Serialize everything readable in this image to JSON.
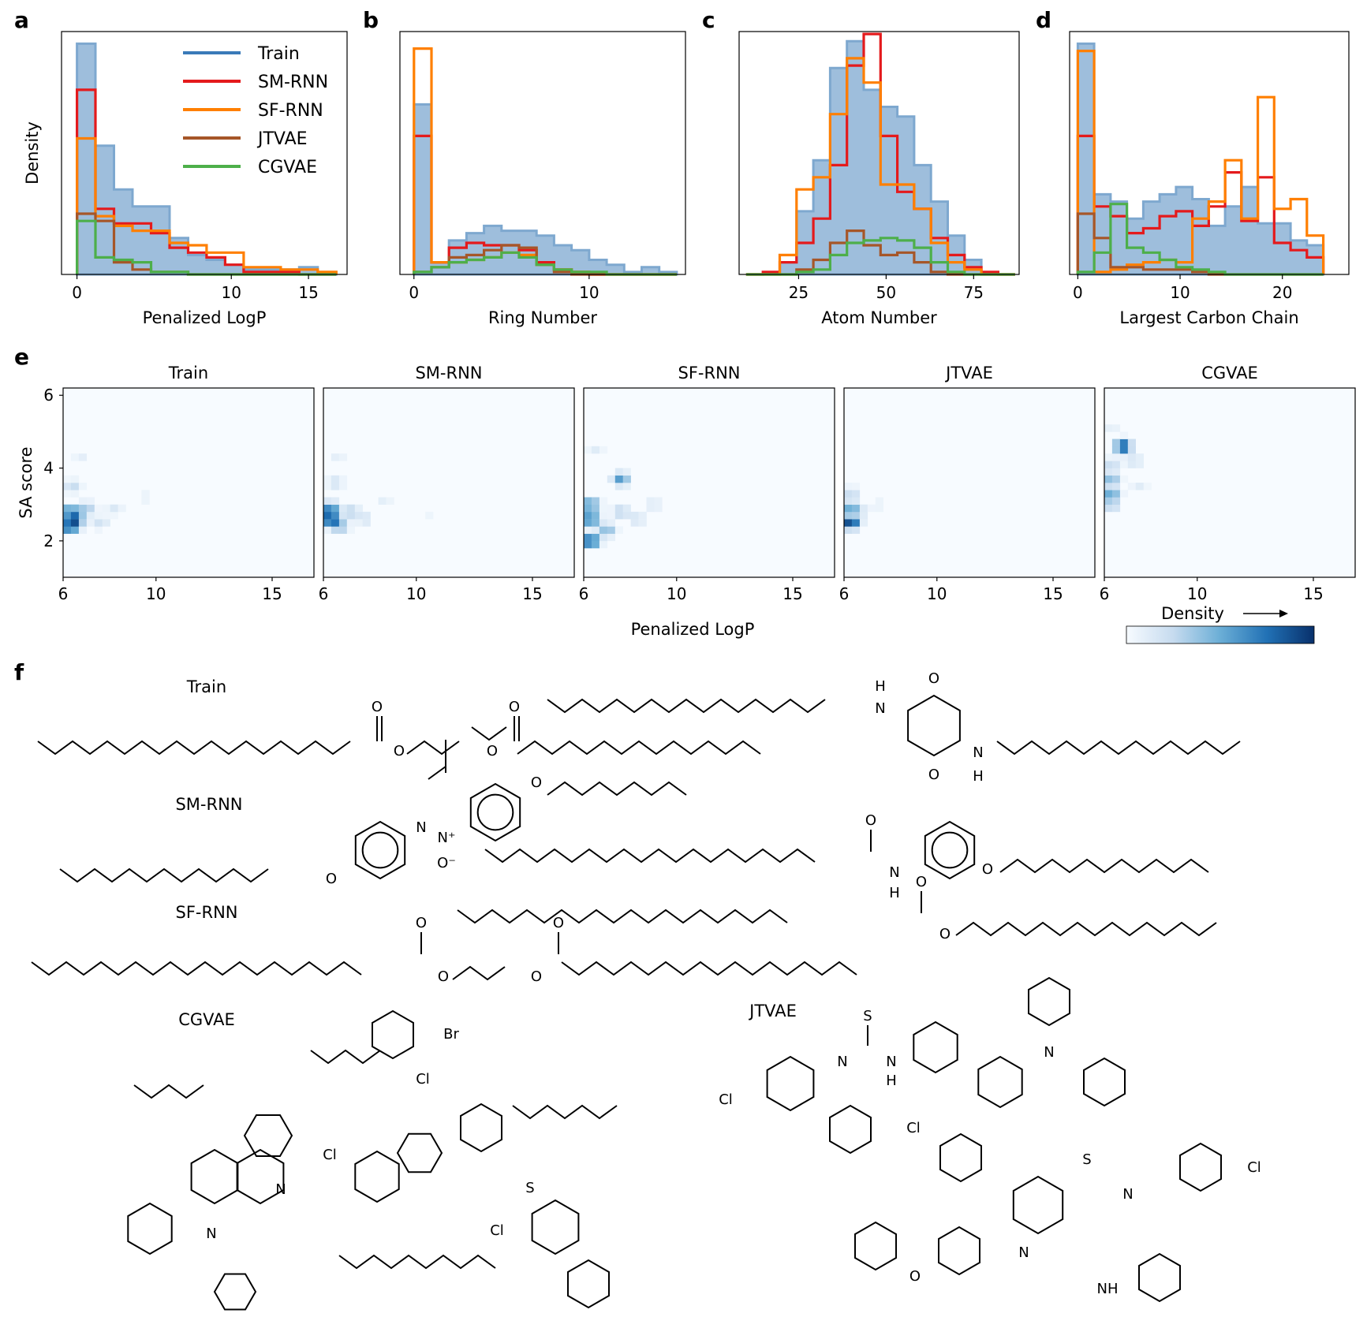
{
  "panel_letters": [
    "a",
    "b",
    "c",
    "d",
    "e",
    "f"
  ],
  "models": [
    {
      "name": "Train",
      "color": "#3a7ab8"
    },
    {
      "name": "SM-RNN",
      "color": "#e41a1c"
    },
    {
      "name": "SF-RNN",
      "color": "#ff7f00"
    },
    {
      "name": "JTVAE",
      "color": "#a65628"
    },
    {
      "name": "CGVAE",
      "color": "#4daf4a"
    }
  ],
  "ylabel_density": "Density",
  "chart_data": [
    {
      "type": "histogram-step",
      "panel": "a",
      "xlabel": "Penalized LogP",
      "ylabel": "Density",
      "xlim": [
        -1,
        17.5
      ],
      "xticks": [
        0,
        10,
        15
      ],
      "legend": "top-right",
      "x_edges": [
        0,
        1.2,
        2.4,
        3.6,
        4.8,
        6,
        7.2,
        8.4,
        9.6,
        10.8,
        12,
        13.2,
        14.4,
        15.6,
        16.8
      ],
      "series": [
        {
          "name": "Train",
          "values": [
            0.95,
            0.53,
            0.35,
            0.28,
            0.28,
            0.15,
            0.08,
            0.06,
            0.04,
            0.02,
            0.02,
            0.02,
            0.03,
            0.01
          ]
        },
        {
          "name": "SM-RNN",
          "values": [
            0.76,
            0.27,
            0.21,
            0.21,
            0.17,
            0.11,
            0.09,
            0.07,
            0.04,
            0.01,
            0.01,
            0.01,
            0.0,
            0.0
          ]
        },
        {
          "name": "SF-RNN",
          "values": [
            0.56,
            0.24,
            0.2,
            0.18,
            0.18,
            0.13,
            0.12,
            0.09,
            0.09,
            0.03,
            0.03,
            0.02,
            0.02,
            0.01
          ]
        },
        {
          "name": "JTVAE",
          "values": [
            0.25,
            0.22,
            0.05,
            0.02,
            0.01,
            0.01,
            0.0,
            0.0,
            0.0,
            0.0,
            0.0,
            0.0,
            0.0,
            0.0
          ]
        },
        {
          "name": "CGVAE",
          "values": [
            0.22,
            0.07,
            0.06,
            0.05,
            0.01,
            0.01,
            0.0,
            0.0,
            0.0,
            0.0,
            0.0,
            0.0,
            0.0,
            0.0
          ]
        }
      ]
    },
    {
      "type": "histogram-step",
      "panel": "b",
      "xlabel": "Ring Number",
      "xlim": [
        -0.8,
        15.5
      ],
      "xticks": [
        0,
        10
      ],
      "x_edges": [
        0,
        1,
        2,
        3,
        4,
        5,
        6,
        7,
        8,
        9,
        10,
        11,
        12,
        13,
        14,
        15
      ],
      "series": [
        {
          "name": "Train",
          "values": [
            0.7,
            0.05,
            0.14,
            0.17,
            0.2,
            0.18,
            0.18,
            0.16,
            0.12,
            0.1,
            0.06,
            0.04,
            0.01,
            0.03,
            0.01
          ]
        },
        {
          "name": "SM-RNN",
          "values": [
            0.57,
            0.05,
            0.11,
            0.13,
            0.12,
            0.12,
            0.1,
            0.05,
            0.02,
            0.01,
            0.0,
            0.0,
            0.0,
            0.0,
            0.0
          ]
        },
        {
          "name": "SF-RNN",
          "values": [
            0.93,
            0.05,
            0.05,
            0.06,
            0.07,
            0.09,
            0.08,
            0.04,
            0.02,
            0.01,
            0.0,
            0.0,
            0.0,
            0.0,
            0.0
          ]
        },
        {
          "name": "JTVAE",
          "values": [
            0.01,
            0.03,
            0.07,
            0.08,
            0.1,
            0.12,
            0.11,
            0.04,
            0.01,
            0.0,
            0.0,
            0.0,
            0.0,
            0.0,
            0.0
          ]
        },
        {
          "name": "CGVAE",
          "values": [
            0.01,
            0.03,
            0.05,
            0.06,
            0.07,
            0.09,
            0.07,
            0.04,
            0.02,
            0.01,
            0.01,
            0.0,
            0.0,
            0.0,
            0.0
          ]
        }
      ]
    },
    {
      "type": "histogram-step",
      "panel": "c",
      "xlabel": "Atom Number",
      "xlim": [
        8,
        88
      ],
      "xticks": [
        25,
        50,
        75
      ],
      "x_edges": [
        10,
        14.8,
        19.6,
        24.4,
        29.2,
        34,
        38.8,
        43.6,
        48.4,
        53.2,
        58,
        62.8,
        67.6,
        72.4,
        77.2,
        82,
        86.8
      ],
      "series": [
        {
          "name": "Train",
          "values": [
            0.0,
            0.0,
            0.05,
            0.26,
            0.47,
            0.85,
            0.96,
            0.76,
            0.69,
            0.65,
            0.45,
            0.3,
            0.16,
            0.06,
            0.0,
            0.0
          ]
        },
        {
          "name": "SM-RNN",
          "values": [
            0.0,
            0.01,
            0.05,
            0.13,
            0.23,
            0.45,
            0.86,
            0.99,
            0.57,
            0.34,
            0.27,
            0.15,
            0.08,
            0.03,
            0.01,
            0.0
          ]
        },
        {
          "name": "SF-RNN",
          "values": [
            0.0,
            0.0,
            0.08,
            0.35,
            0.4,
            0.66,
            0.89,
            0.79,
            0.37,
            0.37,
            0.27,
            0.13,
            0.05,
            0.02,
            0.0,
            0.0
          ]
        },
        {
          "name": "JTVAE",
          "values": [
            0.0,
            0.0,
            0.0,
            0.02,
            0.06,
            0.13,
            0.18,
            0.12,
            0.08,
            0.09,
            0.05,
            0.01,
            0.0,
            0.0,
            0.0,
            0.0
          ]
        },
        {
          "name": "CGVAE",
          "values": [
            0.0,
            0.0,
            0.0,
            0.01,
            0.02,
            0.08,
            0.13,
            0.14,
            0.15,
            0.14,
            0.11,
            0.05,
            0.01,
            0.0,
            0.0,
            0.0
          ]
        }
      ]
    },
    {
      "type": "histogram-step",
      "panel": "d",
      "xlabel": "Largest Carbon Chain",
      "xlim": [
        -0.8,
        26.5
      ],
      "xticks": [
        0,
        10,
        20
      ],
      "x_edges": [
        0,
        1.6,
        3.2,
        4.8,
        6.4,
        8,
        9.6,
        11.2,
        12.8,
        14.4,
        16,
        17.6,
        19.2,
        20.8,
        22.4,
        24
      ],
      "series": [
        {
          "name": "Train",
          "values": [
            0.95,
            0.33,
            0.3,
            0.23,
            0.3,
            0.33,
            0.36,
            0.31,
            0.2,
            0.28,
            0.36,
            0.21,
            0.21,
            0.14,
            0.12
          ]
        },
        {
          "name": "SM-RNN",
          "values": [
            0.57,
            0.28,
            0.24,
            0.17,
            0.19,
            0.24,
            0.26,
            0.2,
            0.28,
            0.42,
            0.22,
            0.4,
            0.13,
            0.1,
            0.07
          ]
        },
        {
          "name": "SF-RNN",
          "values": [
            0.92,
            0.01,
            0.02,
            0.04,
            0.05,
            0.06,
            0.05,
            0.23,
            0.3,
            0.47,
            0.23,
            0.73,
            0.27,
            0.31,
            0.16
          ]
        },
        {
          "name": "JTVAE",
          "values": [
            0.25,
            0.15,
            0.03,
            0.03,
            0.02,
            0.02,
            0.02,
            0.01,
            0.0,
            0.0,
            0.0,
            0.0,
            0.0,
            0.0,
            0.0
          ]
        },
        {
          "name": "CGVAE",
          "values": [
            0.01,
            0.09,
            0.29,
            0.11,
            0.09,
            0.06,
            0.03,
            0.02,
            0.01,
            0.0,
            0.0,
            0.0,
            0.0,
            0.0,
            0.0
          ]
        }
      ]
    },
    {
      "type": "heatmap",
      "panel": "e",
      "xlabel": "Penalized LogP",
      "ylabel": "SA score",
      "xlim": [
        6,
        16.8
      ],
      "ylim": [
        1,
        6.2
      ],
      "xticks": [
        6,
        10,
        15
      ],
      "yticks": [
        2,
        4,
        6
      ],
      "colorbar_label": "Density",
      "colorscale": [
        "#f7fbff",
        "#c6dbef",
        "#6baed6",
        "#2171b5",
        "#08306b"
      ],
      "panels": [
        {
          "name": "Train",
          "hotspots": [
            {
              "x": 6.3,
              "y": 2.4,
              "v": 1.0
            },
            {
              "x": 6.3,
              "y": 2.8,
              "v": 0.75
            },
            {
              "x": 6.6,
              "y": 2.6,
              "v": 0.55
            },
            {
              "x": 7.0,
              "y": 2.9,
              "v": 0.35
            },
            {
              "x": 7.6,
              "y": 2.5,
              "v": 0.2
            },
            {
              "x": 8.2,
              "y": 2.9,
              "v": 0.15
            },
            {
              "x": 6.4,
              "y": 3.5,
              "v": 0.25
            },
            {
              "x": 6.8,
              "y": 4.3,
              "v": 0.1
            },
            {
              "x": 9.5,
              "y": 3.2,
              "v": 0.08
            },
            {
              "x": 11.0,
              "y": 3.2,
              "v": 0.06
            }
          ]
        },
        {
          "name": "SM-RNN",
          "hotspots": [
            {
              "x": 6.3,
              "y": 2.6,
              "v": 1.0
            },
            {
              "x": 6.3,
              "y": 2.9,
              "v": 0.7
            },
            {
              "x": 6.7,
              "y": 2.4,
              "v": 0.45
            },
            {
              "x": 7.2,
              "y": 2.8,
              "v": 0.3
            },
            {
              "x": 7.8,
              "y": 2.6,
              "v": 0.18
            },
            {
              "x": 6.5,
              "y": 3.6,
              "v": 0.2
            },
            {
              "x": 8.6,
              "y": 3.1,
              "v": 0.1
            },
            {
              "x": 6.6,
              "y": 4.3,
              "v": 0.1
            },
            {
              "x": 10.5,
              "y": 2.7,
              "v": 0.05
            }
          ]
        },
        {
          "name": "SF-RNN",
          "hotspots": [
            {
              "x": 6.3,
              "y": 2.0,
              "v": 1.0
            },
            {
              "x": 6.3,
              "y": 2.6,
              "v": 0.85
            },
            {
              "x": 6.3,
              "y": 3.0,
              "v": 0.7
            },
            {
              "x": 7.6,
              "y": 3.7,
              "v": 0.6
            },
            {
              "x": 7.0,
              "y": 2.3,
              "v": 0.45
            },
            {
              "x": 7.6,
              "y": 2.8,
              "v": 0.3
            },
            {
              "x": 8.3,
              "y": 2.6,
              "v": 0.2
            },
            {
              "x": 9.0,
              "y": 3.0,
              "v": 0.15
            },
            {
              "x": 6.5,
              "y": 4.5,
              "v": 0.12
            },
            {
              "x": 11.0,
              "y": 2.4,
              "v": 0.06
            }
          ]
        },
        {
          "name": "JTVAE",
          "hotspots": [
            {
              "x": 6.3,
              "y": 2.5,
              "v": 1.0
            },
            {
              "x": 6.3,
              "y": 2.9,
              "v": 0.55
            },
            {
              "x": 6.3,
              "y": 3.3,
              "v": 0.25
            },
            {
              "x": 6.8,
              "y": 2.8,
              "v": 0.12
            },
            {
              "x": 7.5,
              "y": 3.0,
              "v": 0.08
            }
          ]
        },
        {
          "name": "CGVAE",
          "hotspots": [
            {
              "x": 6.8,
              "y": 4.6,
              "v": 1.0
            },
            {
              "x": 6.3,
              "y": 3.3,
              "v": 0.55
            },
            {
              "x": 6.3,
              "y": 3.7,
              "v": 0.45
            },
            {
              "x": 6.3,
              "y": 3.0,
              "v": 0.35
            },
            {
              "x": 6.3,
              "y": 4.1,
              "v": 0.25
            },
            {
              "x": 7.3,
              "y": 4.2,
              "v": 0.2
            },
            {
              "x": 7.5,
              "y": 3.5,
              "v": 0.12
            },
            {
              "x": 6.3,
              "y": 5.1,
              "v": 0.1
            }
          ]
        }
      ]
    }
  ],
  "molecules_panel": {
    "labels": [
      "Train",
      "SM-RNN",
      "SF-RNN",
      "CGVAE",
      "JTVAE"
    ],
    "atom_labels": [
      "O",
      "N",
      "N⁺",
      "O⁻",
      "H",
      "S",
      "Cl",
      "Br",
      "NH"
    ]
  }
}
